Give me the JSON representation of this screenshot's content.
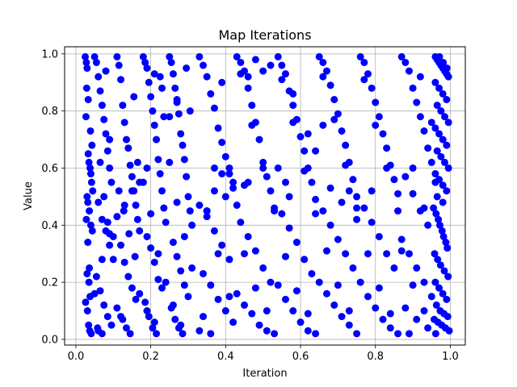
{
  "chart_data": {
    "type": "scatter",
    "title": "Map Iterations",
    "xlabel": "Iteration",
    "ylabel": "Value",
    "xlim": [
      -0.03,
      1.04
    ],
    "ylim": [
      -0.02,
      1.025
    ],
    "grid": true,
    "marker_color": "#0000ff",
    "xticks": [
      0.0,
      0.2,
      0.4,
      0.6,
      0.8,
      1.0
    ],
    "xtick_labels": [
      "0.0",
      "0.2",
      "0.4",
      "0.6",
      "0.8",
      "1.0"
    ],
    "yticks": [
      0.0,
      0.2,
      0.4,
      0.6,
      0.8,
      1.0
    ],
    "ytick_labels": [
      "0.0",
      "0.2",
      "0.4",
      "0.6",
      "0.8",
      "1.0"
    ],
    "x": [
      0.025,
      0.028,
      0.03,
      0.033,
      0.035,
      0.038,
      0.04,
      0.042,
      0.045,
      0.03,
      0.032,
      0.036,
      0.028,
      0.04,
      0.044,
      0.03,
      0.035,
      0.038,
      0.026,
      0.031,
      0.034,
      0.037,
      0.041,
      0.029,
      0.033,
      0.027,
      0.039,
      0.043,
      0.032,
      0.036,
      0.05,
      0.055,
      0.06,
      0.065,
      0.07,
      0.075,
      0.08,
      0.085,
      0.09,
      0.095,
      0.06,
      0.07,
      0.08,
      0.09,
      0.1,
      0.055,
      0.065,
      0.075,
      0.085,
      0.095,
      0.06,
      0.07,
      0.08,
      0.09,
      0.065,
      0.075,
      0.085,
      0.1,
      0.05,
      0.058,
      0.11,
      0.115,
      0.12,
      0.125,
      0.13,
      0.135,
      0.14,
      0.145,
      0.15,
      0.155,
      0.16,
      0.165,
      0.17,
      0.12,
      0.13,
      0.14,
      0.15,
      0.16,
      0.11,
      0.125,
      0.135,
      0.145,
      0.155,
      0.165,
      0.115,
      0.128,
      0.142,
      0.158,
      0.17,
      0.12,
      0.18,
      0.185,
      0.19,
      0.195,
      0.2,
      0.205,
      0.21,
      0.215,
      0.22,
      0.225,
      0.23,
      0.235,
      0.24,
      0.19,
      0.2,
      0.21,
      0.22,
      0.23,
      0.185,
      0.195,
      0.205,
      0.215,
      0.225,
      0.235,
      0.18,
      0.2,
      0.22,
      0.24,
      0.19,
      0.21,
      0.25,
      0.255,
      0.26,
      0.265,
      0.27,
      0.275,
      0.28,
      0.285,
      0.29,
      0.295,
      0.3,
      0.305,
      0.31,
      0.26,
      0.27,
      0.28,
      0.29,
      0.3,
      0.255,
      0.265,
      0.275,
      0.285,
      0.295,
      0.305,
      0.25,
      0.27,
      0.29,
      0.31,
      0.26,
      0.28,
      0.33,
      0.34,
      0.35,
      0.36,
      0.37,
      0.38,
      0.39,
      0.4,
      0.41,
      0.42,
      0.33,
      0.35,
      0.37,
      0.39,
      0.41,
      0.34,
      0.36,
      0.38,
      0.4,
      0.42,
      0.33,
      0.36,
      0.39,
      0.42,
      0.35,
      0.38,
      0.41,
      0.34,
      0.37,
      0.4,
      0.43,
      0.44,
      0.45,
      0.46,
      0.47,
      0.48,
      0.49,
      0.5,
      0.51,
      0.52,
      0.53,
      0.44,
      0.46,
      0.48,
      0.5,
      0.52,
      0.43,
      0.45,
      0.47,
      0.49,
      0.51,
      0.53,
      0.44,
      0.47,
      0.5,
      0.53,
      0.45,
      0.48,
      0.51,
      0.46,
      0.54,
      0.55,
      0.56,
      0.57,
      0.58,
      0.59,
      0.6,
      0.61,
      0.62,
      0.63,
      0.64,
      0.55,
      0.57,
      0.59,
      0.61,
      0.63,
      0.54,
      0.56,
      0.58,
      0.6,
      0.62,
      0.64,
      0.55,
      0.58,
      0.61,
      0.64,
      0.56,
      0.59,
      0.62,
      0.57,
      0.65,
      0.66,
      0.67,
      0.68,
      0.69,
      0.7,
      0.71,
      0.72,
      0.73,
      0.74,
      0.75,
      0.66,
      0.68,
      0.7,
      0.72,
      0.74,
      0.65,
      0.67,
      0.69,
      0.71,
      0.73,
      0.75,
      0.66,
      0.69,
      0.72,
      0.75,
      0.67,
      0.7,
      0.73,
      0.68,
      0.76,
      0.77,
      0.78,
      0.79,
      0.8,
      0.81,
      0.82,
      0.83,
      0.84,
      0.85,
      0.86,
      0.77,
      0.79,
      0.81,
      0.83,
      0.85,
      0.76,
      0.78,
      0.8,
      0.82,
      0.84,
      0.86,
      0.77,
      0.8,
      0.83,
      0.86,
      0.78,
      0.81,
      0.84,
      0.79,
      0.87,
      0.88,
      0.89,
      0.9,
      0.91,
      0.92,
      0.93,
      0.94,
      0.95,
      0.88,
      0.9,
      0.92,
      0.94,
      0.87,
      0.89,
      0.91,
      0.93,
      0.95,
      0.88,
      0.91,
      0.94,
      0.89,
      0.92,
      0.95,
      0.9,
      0.93,
      0.87,
      0.9,
      0.93,
      0.96,
      0.96,
      0.965,
      0.97,
      0.975,
      0.98,
      0.985,
      0.99,
      0.995,
      0.96,
      0.97,
      0.98,
      0.99,
      0.965,
      0.975,
      0.985,
      0.995,
      0.96,
      0.97,
      0.98,
      0.99,
      0.965,
      0.975,
      0.985,
      0.995,
      0.96,
      0.97,
      0.98,
      0.99,
      0.965,
      0.98,
      0.955,
      0.962,
      0.968,
      0.972,
      0.978,
      0.982,
      0.988,
      0.992,
      0.958,
      0.966,
      0.974,
      0.984,
      0.994,
      0.96,
      0.97,
      0.98,
      0.99,
      0.963,
      0.973,
      0.983,
      0.993,
      0.957,
      0.967,
      0.977,
      0.987,
      0.997,
      0.961,
      0.971,
      0.981,
      0.991,
      0.52,
      0.5,
      0.48,
      0.46,
      0.54,
      0.56,
      0.58,
      0.62,
      0.64,
      0.66,
      0.27,
      0.25,
      0.23,
      0.21,
      0.19,
      0.17,
      0.15,
      0.13,
      0.11,
      0.09,
      0.07,
      0.35,
      0.37,
      0.39,
      0.41,
      0.43,
      0.45,
      0.71,
      0.73,
      0.75
    ],
    "y": [
      0.99,
      0.97,
      0.95,
      0.65,
      0.62,
      0.6,
      0.58,
      0.55,
      0.52,
      0.5,
      0.48,
      0.45,
      0.42,
      0.4,
      0.38,
      0.23,
      0.2,
      0.15,
      0.13,
      0.1,
      0.05,
      0.03,
      0.02,
      0.88,
      0.84,
      0.78,
      0.73,
      0.68,
      0.34,
      0.25,
      0.99,
      0.97,
      0.92,
      0.87,
      0.82,
      0.77,
      0.72,
      0.66,
      0.6,
      0.55,
      0.48,
      0.42,
      0.38,
      0.33,
      0.28,
      0.22,
      0.17,
      0.12,
      0.08,
      0.05,
      0.03,
      0.02,
      0.94,
      0.7,
      0.62,
      0.5,
      0.41,
      0.36,
      0.16,
      0.04,
      0.99,
      0.96,
      0.91,
      0.82,
      0.76,
      0.7,
      0.67,
      0.61,
      0.57,
      0.52,
      0.47,
      0.42,
      0.38,
      0.33,
      0.27,
      0.22,
      0.18,
      0.14,
      0.11,
      0.07,
      0.04,
      0.02,
      0.85,
      0.62,
      0.52,
      0.45,
      0.37,
      0.29,
      0.16,
      0.08,
      0.99,
      0.97,
      0.95,
      0.9,
      0.85,
      0.8,
      0.75,
      0.7,
      0.63,
      0.58,
      0.52,
      0.46,
      0.41,
      0.36,
      0.32,
      0.27,
      0.21,
      0.18,
      0.13,
      0.08,
      0.04,
      0.02,
      0.92,
      0.78,
      0.55,
      0.44,
      0.3,
      0.2,
      0.1,
      0.06,
      0.99,
      0.97,
      0.93,
      0.88,
      0.83,
      0.79,
      0.72,
      0.68,
      0.63,
      0.57,
      0.5,
      0.45,
      0.4,
      0.34,
      0.29,
      0.24,
      0.19,
      0.15,
      0.11,
      0.07,
      0.04,
      0.02,
      0.95,
      0.8,
      0.62,
      0.48,
      0.36,
      0.25,
      0.12,
      0.05,
      0.99,
      0.96,
      0.92,
      0.86,
      0.81,
      0.74,
      0.69,
      0.64,
      0.58,
      0.53,
      0.47,
      0.43,
      0.38,
      0.33,
      0.28,
      0.23,
      0.19,
      0.14,
      0.1,
      0.06,
      0.03,
      0.02,
      0.9,
      0.55,
      0.45,
      0.3,
      0.15,
      0.08,
      0.6,
      0.5,
      0.99,
      0.97,
      0.94,
      0.88,
      0.82,
      0.76,
      0.7,
      0.62,
      0.57,
      0.52,
      0.46,
      0.41,
      0.36,
      0.31,
      0.25,
      0.2,
      0.16,
      0.12,
      0.09,
      0.05,
      0.03,
      0.02,
      0.93,
      0.75,
      0.6,
      0.45,
      0.3,
      0.18,
      0.1,
      0.55,
      0.99,
      0.96,
      0.93,
      0.87,
      0.82,
      0.77,
      0.71,
      0.66,
      0.6,
      0.55,
      0.49,
      0.44,
      0.39,
      0.34,
      0.28,
      0.23,
      0.19,
      0.14,
      0.1,
      0.06,
      0.03,
      0.02,
      0.91,
      0.76,
      0.59,
      0.44,
      0.29,
      0.17,
      0.09,
      0.5,
      0.99,
      0.97,
      0.94,
      0.89,
      0.84,
      0.79,
      0.73,
      0.68,
      0.62,
      0.56,
      0.5,
      0.45,
      0.4,
      0.35,
      0.3,
      0.25,
      0.2,
      0.16,
      0.12,
      0.08,
      0.05,
      0.02,
      0.92,
      0.77,
      0.61,
      0.46,
      0.31,
      0.19,
      0.1,
      0.53,
      0.99,
      0.97,
      0.93,
      0.88,
      0.83,
      0.78,
      0.72,
      0.67,
      0.61,
      0.56,
      0.51,
      0.46,
      0.41,
      0.36,
      0.3,
      0.25,
      0.2,
      0.15,
      0.11,
      0.07,
      0.04,
      0.02,
      0.91,
      0.75,
      0.6,
      0.45,
      0.3,
      0.18,
      0.09,
      0.52,
      0.99,
      0.97,
      0.94,
      0.88,
      0.83,
      0.78,
      0.73,
      0.67,
      0.62,
      0.57,
      0.51,
      0.45,
      0.4,
      0.35,
      0.3,
      0.25,
      0.2,
      0.15,
      0.11,
      0.07,
      0.04,
      0.02,
      0.92,
      0.76,
      0.6,
      0.46,
      0.31,
      0.19,
      0.1,
      0.55,
      0.99,
      0.98,
      0.97,
      0.96,
      0.95,
      0.94,
      0.93,
      0.92,
      0.9,
      0.88,
      0.86,
      0.84,
      0.82,
      0.8,
      0.78,
      0.76,
      0.74,
      0.72,
      0.7,
      0.68,
      0.66,
      0.64,
      0.62,
      0.6,
      0.58,
      0.56,
      0.54,
      0.52,
      0.5,
      0.48,
      0.46,
      0.44,
      0.42,
      0.4,
      0.38,
      0.36,
      0.34,
      0.32,
      0.3,
      0.28,
      0.26,
      0.24,
      0.22,
      0.2,
      0.18,
      0.16,
      0.14,
      0.12,
      0.1,
      0.09,
      0.08,
      0.07,
      0.06,
      0.05,
      0.04,
      0.03,
      0.02,
      0.99,
      0.97,
      0.95,
      0.96,
      0.94,
      0.98,
      0.92,
      0.6,
      0.55,
      0.86,
      0.72,
      0.66,
      0.75,
      0.84,
      0.78,
      0.88,
      0.93,
      0.6,
      0.55,
      0.52,
      0.47,
      0.43,
      0.37,
      0.28,
      0.45,
      0.52,
      0.58,
      0.6,
      0.47,
      0.54,
      0.48,
      0.52,
      0.42
    ]
  }
}
